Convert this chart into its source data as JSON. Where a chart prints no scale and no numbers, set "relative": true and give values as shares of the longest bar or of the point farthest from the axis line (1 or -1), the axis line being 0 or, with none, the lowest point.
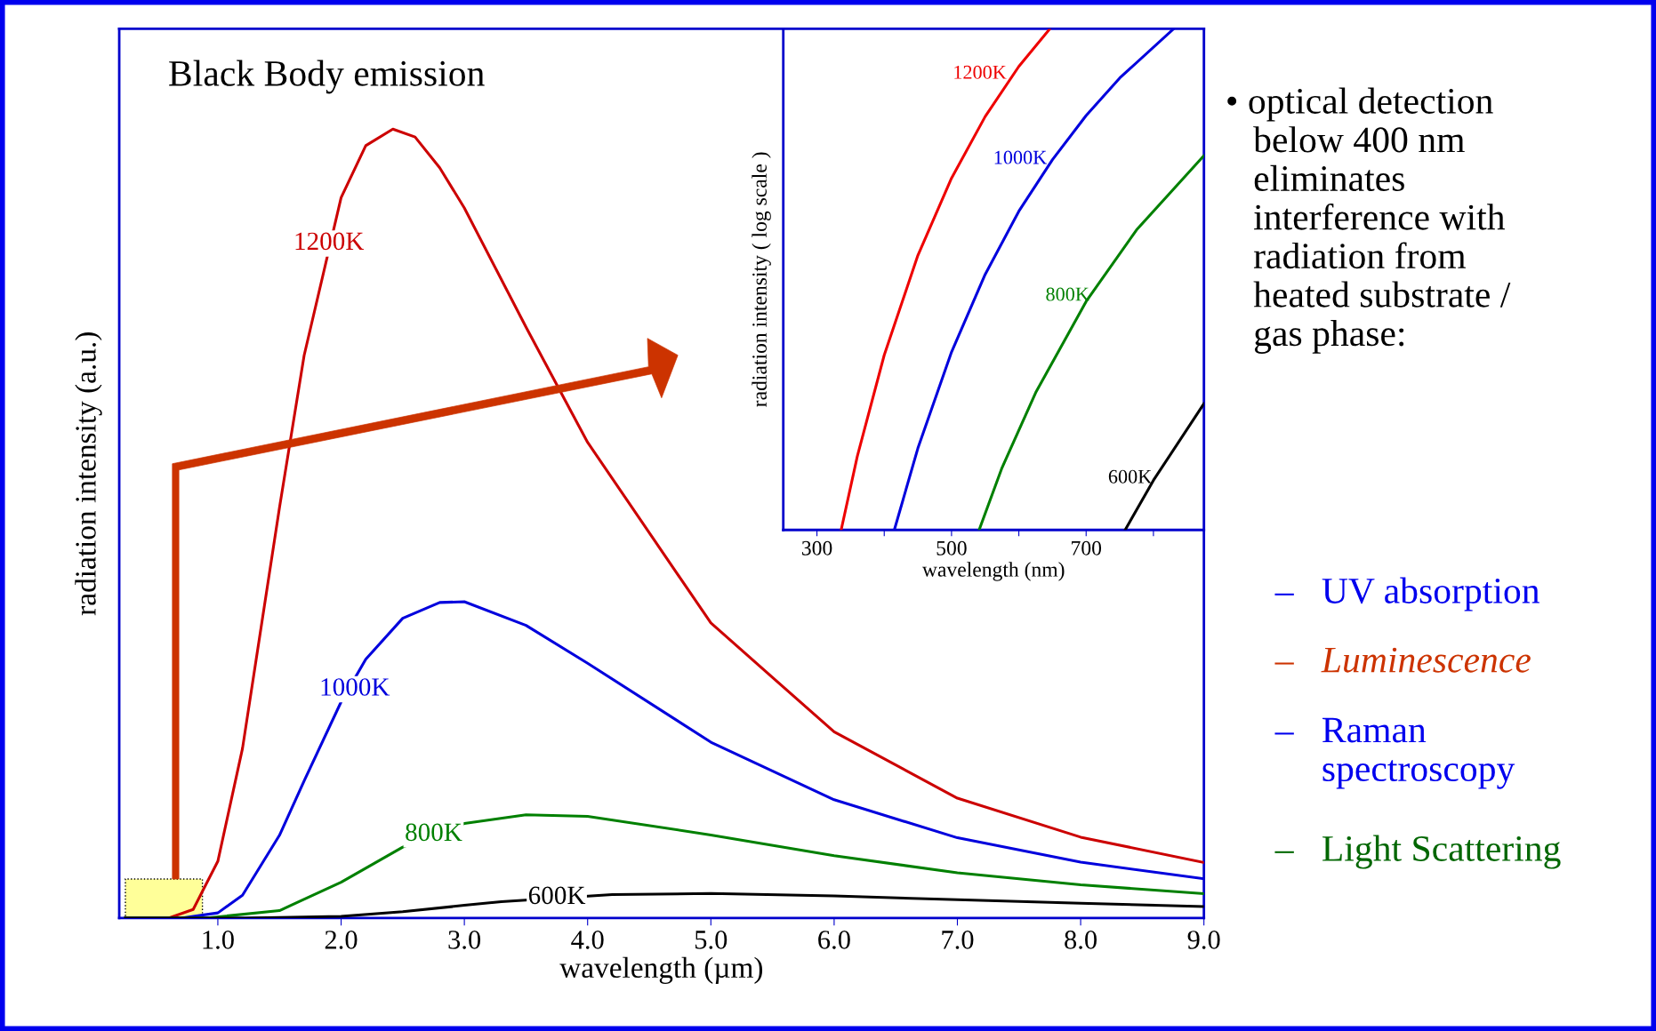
{
  "chart_data": [
    {
      "type": "line",
      "title": "Black Body emission",
      "xlabel": "wavelength (µm)",
      "ylabel": "radiation intensity (a.u.)",
      "relative": true,
      "xlim": [
        0.2,
        9.0
      ],
      "xticks": [
        {
          "value": 1,
          "label": "1.0"
        },
        {
          "value": 2,
          "label": "2.0"
        },
        {
          "value": 3,
          "label": "3.0"
        },
        {
          "value": 4,
          "label": "4.0"
        },
        {
          "value": 5,
          "label": "5.0"
        },
        {
          "value": 6,
          "label": "6.0"
        },
        {
          "value": 7,
          "label": "7.0"
        },
        {
          "value": 8,
          "label": "8.0"
        },
        {
          "value": 9,
          "label": "9.0"
        }
      ],
      "series": [
        {
          "color": "#cc0000",
          "x": [
            0.25,
            0.6,
            0.8,
            1.0,
            1.2,
            1.5,
            1.7,
            2.0,
            2.2,
            2.42,
            2.6,
            2.8,
            3.0,
            3.5,
            4.0,
            5.0,
            6.0,
            7.0,
            8.0,
            9.0
          ],
          "values": [
            0,
            0,
            0.011,
            0.072,
            0.215,
            0.52,
            0.713,
            0.913,
            0.979,
            1.0,
            0.99,
            0.951,
            0.9,
            0.749,
            0.603,
            0.374,
            0.236,
            0.152,
            0.1026,
            0.0705
          ]
        },
        {
          "color": "#0000dd",
          "x": [
            0.25,
            0.7,
            1.0,
            1.2,
            1.5,
            1.7,
            2.0,
            2.2,
            2.5,
            2.8,
            3.0,
            3.5,
            4.0,
            5.0,
            6.0,
            7.0,
            8.0,
            9.0
          ],
          "values": [
            0,
            0,
            0.0066,
            0.029,
            0.105,
            0.174,
            0.274,
            0.328,
            0.38,
            0.4,
            0.401,
            0.371,
            0.323,
            0.223,
            0.15,
            0.1018,
            0.0709,
            0.0498
          ]
        },
        {
          "color": "#008000",
          "x": [
            0.25,
            0.9,
            1.5,
            2.0,
            2.5,
            3.0,
            3.5,
            4.0,
            5.0,
            6.0,
            7.0,
            8.0,
            9.0
          ],
          "values": [
            0,
            0,
            0.0095,
            0.0455,
            0.09,
            0.12,
            0.131,
            0.129,
            0.1054,
            0.079,
            0.0575,
            0.0422,
            0.0309
          ]
        },
        {
          "color": "#000000",
          "x": [
            0.25,
            1.2,
            2.0,
            2.5,
            3.0,
            3.3,
            4.2,
            5.0,
            6.0,
            7.0,
            8.0,
            9.0
          ],
          "values": [
            0,
            0,
            0.00227,
            0.0082,
            0.0162,
            0.0209,
            0.0298,
            0.0312,
            0.0281,
            0.0233,
            0.0188,
            0.0147
          ]
        }
      ],
      "bands": [
        {
          "axis": "x",
          "from": 0.25,
          "to": 0.875,
          "color": "#ffff99"
        }
      ],
      "annotations": [
        {
          "text": "1200K",
          "x": 1.9,
          "y": 0.855
        },
        {
          "text": "1000K",
          "x": 2.11,
          "y": 0.29
        },
        {
          "text": "800K",
          "x": 2.75,
          "y": 0.106
        },
        {
          "text": "600K",
          "x": 3.75,
          "y": 0.026
        },
        "• optical detection\n   below 400 nm\n   eliminates\n   interference with\n   radiation from\n   heated substrate /\n   gas phase:",
        "–   UV absorption",
        "–   Luminescence",
        "–   Raman\n     spectroscopy",
        "–   Light Scattering"
      ]
    },
    {
      "type": "line",
      "xlabel": "wavelength (nm)",
      "ylabel": "radiation intensity ( log scale )",
      "relative": true,
      "xlim": [
        250,
        875
      ],
      "xticks": [
        300,
        {
          "value": 400,
          "label": null
        },
        500,
        {
          "value": 600,
          "label": null
        },
        700,
        {
          "value": 800,
          "label": null
        }
      ],
      "series": [
        {
          "color": "#ee0000",
          "x": [
            336,
            360,
            400,
            450,
            500,
            550,
            600,
            646
          ],
          "values": [
            0,
            0.147,
            0.349,
            0.548,
            0.702,
            0.825,
            0.925,
            1.0
          ]
        },
        {
          "color": "#0000dd",
          "x": [
            415,
            450,
            500,
            550,
            600,
            650,
            700,
            750,
            830
          ],
          "values": [
            0,
            0.163,
            0.355,
            0.51,
            0.636,
            0.739,
            0.827,
            0.902,
            1.0
          ]
        },
        {
          "color": "#008000",
          "x": [
            541,
            575,
            625,
            700,
            775,
            875
          ],
          "values": [
            0,
            0.124,
            0.274,
            0.456,
            0.599,
            0.747
          ]
        },
        {
          "color": "#000000",
          "x": [
            758,
            800,
            875
          ],
          "values": [
            0,
            0.099,
            0.252
          ]
        }
      ],
      "annotations": [
        {
          "text": "1200K",
          "x": 591,
          "y": 0.91
        },
        {
          "text": "1000K",
          "x": 651,
          "y": 0.74
        },
        {
          "text": "800K",
          "x": 714,
          "y": 0.467
        },
        {
          "text": "600K",
          "x": 807,
          "y": 0.103
        }
      ]
    }
  ]
}
